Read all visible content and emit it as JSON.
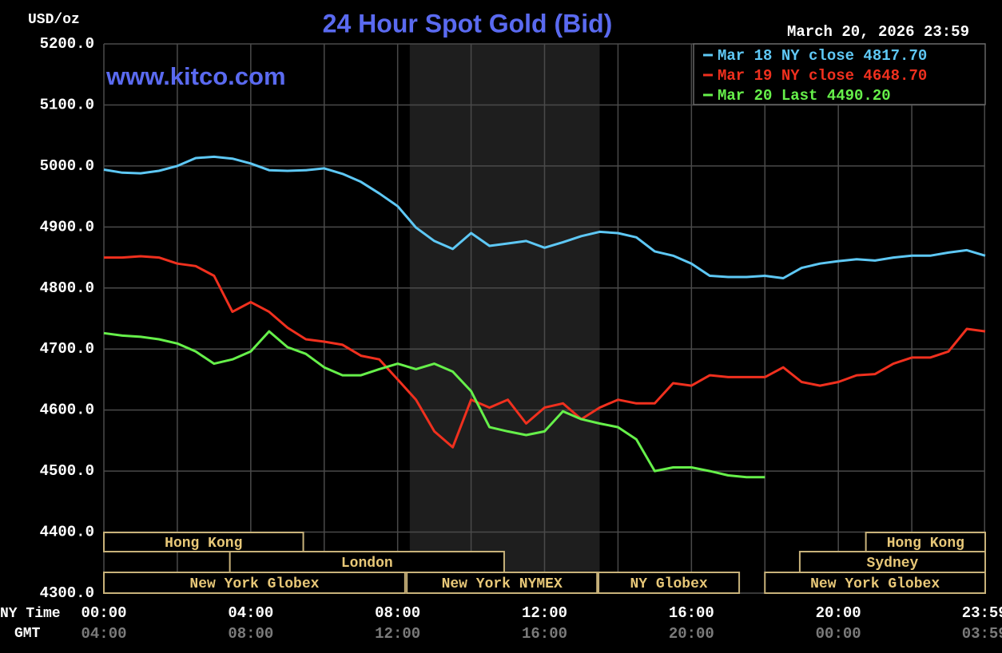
{
  "chart_data": {
    "type": "line",
    "title": "24 Hour Spot Gold (Bid)",
    "timestamp": "March 20, 2026 23:59",
    "ylabel": "USD/oz",
    "watermark": "www.kitco.com",
    "x_axis_label": "NY Time",
    "x2_axis_label": "GMT",
    "xlim": [
      0,
      24
    ],
    "xticks": [
      {
        "value": 0,
        "label": "00:00"
      },
      {
        "value": 4,
        "label": "04:00"
      },
      {
        "value": 8,
        "label": "08:00"
      },
      {
        "value": 12,
        "label": "12:00"
      },
      {
        "value": 16,
        "label": "16:00"
      },
      {
        "value": 20,
        "label": "20:00"
      },
      {
        "value": 23.983,
        "label": "23:59"
      }
    ],
    "x2ticks": [
      {
        "value": 0,
        "label": "04:00"
      },
      {
        "value": 4,
        "label": "08:00"
      },
      {
        "value": 8,
        "label": "12:00"
      },
      {
        "value": 12,
        "label": "16:00"
      },
      {
        "value": 16,
        "label": "20:00"
      },
      {
        "value": 20,
        "label": "00:00"
      },
      {
        "value": 23.983,
        "label": "03:59"
      }
    ],
    "xminor": [
      2,
      6,
      10,
      14,
      18,
      22
    ],
    "ylim": [
      4300,
      5200
    ],
    "yticks": [
      {
        "value": 4300,
        "label": "4300.0"
      },
      {
        "value": 4400,
        "label": "4400.0"
      },
      {
        "value": 4500,
        "label": "4500.0"
      },
      {
        "value": 4600,
        "label": "4600.0"
      },
      {
        "value": 4700,
        "label": "4700.0"
      },
      {
        "value": 4800,
        "label": "4800.0"
      },
      {
        "value": 4900,
        "label": "4900.0"
      },
      {
        "value": 5000,
        "label": "5000.0"
      },
      {
        "value": 5100,
        "label": "5100.0"
      },
      {
        "value": 5200,
        "label": "5200.0"
      }
    ],
    "grid": true,
    "shaded": [
      8.33,
      13.5
    ],
    "legend": "upper right",
    "x": [
      0,
      0.5,
      1,
      1.5,
      2,
      2.5,
      3,
      3.5,
      4,
      4.5,
      5,
      5.5,
      6,
      6.5,
      7,
      7.5,
      8,
      8.5,
      9,
      9.5,
      10,
      10.5,
      11,
      11.5,
      12,
      12.5,
      13,
      13.5,
      14,
      14.5,
      15,
      15.5,
      16,
      16.5,
      17,
      17.5,
      18,
      18.5,
      19,
      19.5,
      20,
      20.5,
      21,
      21.5,
      22,
      22.5,
      23,
      23.5,
      24
    ],
    "series": [
      {
        "name": "Mar 18 NY close 4817.70",
        "color": "#5ec8f5",
        "values": [
          4994,
          4989,
          4988,
          4992,
          5000,
          5013,
          5015,
          5012,
          5004,
          4993,
          4992,
          4993,
          4996,
          4987,
          4974,
          4955,
          4934,
          4899,
          4877,
          4864,
          4890,
          4869,
          4873,
          4877,
          4866,
          4875,
          4885,
          4892,
          4890,
          4883,
          4860,
          4853,
          4840,
          4820,
          4818,
          4818,
          4820,
          4816,
          4833,
          4840,
          4844,
          4847,
          4845,
          4850,
          4853,
          4853,
          4858,
          4862,
          4853
        ]
      },
      {
        "name": "Mar 19 NY close 4648.70",
        "color": "#f0301e",
        "values": [
          4850,
          4850,
          4852,
          4850,
          4840,
          4836,
          4820,
          4761,
          4777,
          4761,
          4735,
          4716,
          4712,
          4707,
          4689,
          4683,
          4650,
          4617,
          4565,
          4539,
          4617,
          4604,
          4617,
          4578,
          4604,
          4611,
          4585,
          4604,
          4617,
          4611,
          4611,
          4644,
          4640,
          4657,
          4654,
          4654,
          4654,
          4670,
          4646,
          4640,
          4646,
          4657,
          4659,
          4676,
          4686,
          4686,
          4696,
          4733,
          4729
        ]
      },
      {
        "name": "Mar 20 Last 4490.20",
        "color": "#66f04a",
        "values": [
          4726,
          4722,
          4720,
          4716,
          4709,
          4696,
          4676,
          4683,
          4696,
          4729,
          4703,
          4692,
          4670,
          4657,
          4657,
          4667,
          4676,
          4667,
          4676,
          4663,
          4631,
          4572,
          4565,
          4559,
          4565,
          4598,
          4585,
          4578,
          4572,
          4552,
          4500,
          4506,
          4506,
          4500,
          4493,
          4490,
          4490,
          null,
          null,
          null,
          null,
          null,
          null,
          null,
          null,
          null,
          null,
          null,
          null
        ]
      }
    ],
    "session_rows": [
      [
        {
          "label": "Hong Kong",
          "start": 0,
          "end": 5.43
        },
        {
          "label": "Hong Kong",
          "start": 20.75,
          "end": 24
        }
      ],
      [
        {
          "label": "London",
          "start": 3.43,
          "end": 10.9
        },
        {
          "label": "Sydney",
          "start": 18.95,
          "end": 24
        }
      ],
      [
        {
          "label": "New York Globex",
          "start": 0,
          "end": 8.2
        },
        {
          "label": "New York NYMEX",
          "start": 8.25,
          "end": 13.43
        },
        {
          "label": "NY Globex",
          "start": 13.47,
          "end": 17.3
        },
        {
          "label": "New York Globex",
          "start": 18,
          "end": 24
        }
      ]
    ]
  }
}
